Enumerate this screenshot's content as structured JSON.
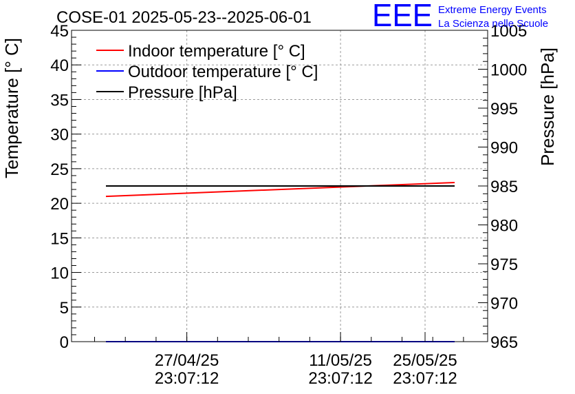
{
  "chart_data": {
    "type": "line",
    "title": "COSE-01 2025-05-23--2025-06-01",
    "logo": {
      "text": "EEE",
      "line1": "Extreme Energy Events",
      "line2": "La Scienza nelle Scuole",
      "color": "#0000ff"
    },
    "ylabel_left": "Temperature [° C]",
    "ylabel_right": "Pressure [hPa]",
    "ylim_left": [
      0,
      45
    ],
    "ylim_right": [
      965,
      1005
    ],
    "yticks_left": [
      "0",
      "5",
      "10",
      "15",
      "20",
      "25",
      "30",
      "35",
      "40",
      "45"
    ],
    "yticks_right": [
      "965",
      "970",
      "975",
      "980",
      "985",
      "990",
      "995",
      "1000",
      "1005"
    ],
    "xlim_days": [
      0,
      37.9
    ],
    "xticks": [
      {
        "day": 10.5,
        "line1": "27/04/25",
        "line2": "23:07:12"
      },
      {
        "day": 24.5,
        "line1": "11/05/25",
        "line2": "23:07:12"
      },
      {
        "day": 38.5,
        "line1": "25/05/25",
        "line2": "23:07:12"
      }
    ],
    "grid": true,
    "legend_position": "top-left",
    "series": [
      {
        "name": "Indoor temperature [° C]",
        "color": "#ff0000",
        "axis": "left",
        "x_days": [
          3.9,
          43.1
        ],
        "values": [
          21.0,
          23.0
        ]
      },
      {
        "name": "Outdoor temperature [° C]",
        "color": "#0000ff",
        "axis": "left",
        "x_days": [
          3.9,
          43.1
        ],
        "values": [
          0.0,
          0.0
        ]
      },
      {
        "name": "Pressure [hPa]",
        "color": "#000000",
        "axis": "right",
        "x_days": [
          3.9,
          43.1
        ],
        "values": [
          985.0,
          985.0
        ]
      }
    ]
  }
}
